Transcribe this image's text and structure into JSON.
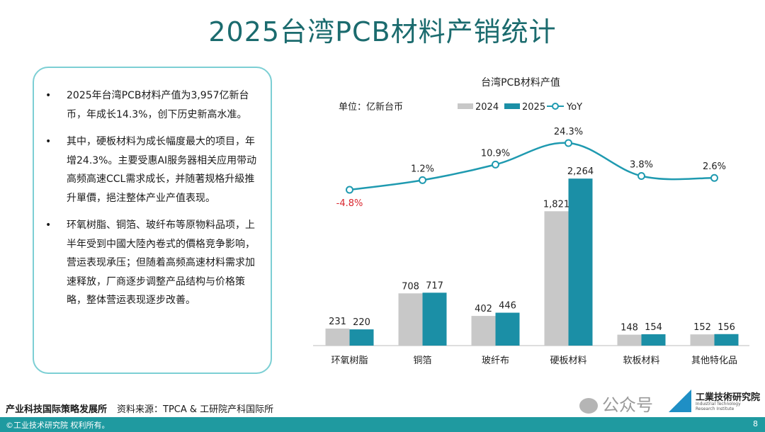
{
  "title": "2025台湾PCB材料产销统计",
  "bullets": [
    "2025年台湾PCB材料产值为3,957亿新台币，年成长14.3%，创下历史新高水准。",
    "其中，硬板材料为成长幅度最大的项目，年增24.3%。主要受惠AI服务器相关应用带动高频高速CCL需求成长，并随著规格升級推升單價，挹注整体产业产值表现。",
    "环氧树脂、铜箔、玻纤布等原物料品项，上半年受到中國大陸內卷式的價格竞争影响，营运表现承压；但随着高频高速材料需求加速释放，厂商逐步调整产品结构与价格策略，整体营运表现逐步改善。"
  ],
  "bullet_marker": "•",
  "footer": {
    "org": "产业科技国际策略发展所",
    "source": "资料来源：TPCA & 工研院产科国际所",
    "copyright": "©工业技术研究院  权利所有。",
    "page": "8"
  },
  "watermark": "公众号",
  "logo": {
    "name": "工業技術研究院",
    "en": "Industrial Technology Research Institute"
  },
  "colors": {
    "title": "#1b6b6e",
    "s2024": "#c8c8c8",
    "s2025": "#1b8fa6",
    "yoy": "#1f9ab0",
    "negative": "#d9262e",
    "footer_bar": "#1f9aa0"
  },
  "chart_data": {
    "type": "bar",
    "title": "台湾PCB材料产值",
    "unit_label": "单位：亿新台币",
    "categories": [
      "环氧树脂",
      "铜箔",
      "玻纤布",
      "硬板材料",
      "软板材料",
      "其他特化品"
    ],
    "series": [
      {
        "name": "2024",
        "values": [
          231,
          708,
          402,
          1821,
          148,
          152
        ]
      },
      {
        "name": "2025",
        "values": [
          220,
          717,
          446,
          2264,
          154,
          156
        ]
      }
    ],
    "value_labels": {
      "2024": [
        "231",
        "708",
        "402",
        "1,821",
        "148",
        "152"
      ],
      "2025": [
        "220",
        "717",
        "446",
        "2,264",
        "154",
        "156"
      ]
    },
    "line_series": {
      "name": "YoY",
      "values": [
        -4.8,
        1.2,
        10.9,
        24.3,
        3.8,
        2.6
      ],
      "labels": [
        "-4.8%",
        "1.2%",
        "10.9%",
        "24.3%",
        "3.8%",
        "2.6%"
      ]
    },
    "legend": "top",
    "grid": false
  }
}
